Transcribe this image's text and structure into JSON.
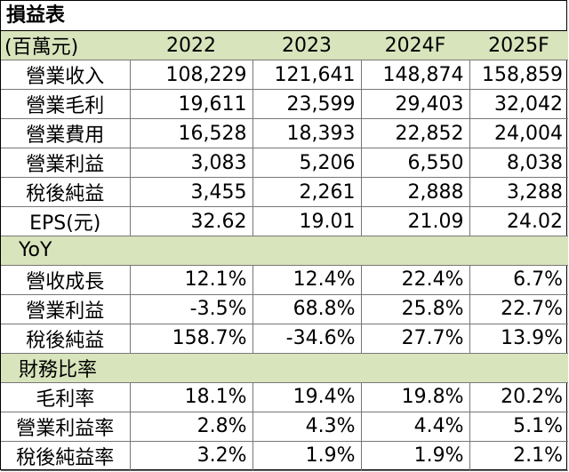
{
  "title": "損益表",
  "header": {
    "unit_label": "(百萬元)",
    "years": [
      "2022",
      "2023",
      "2024F",
      "2025F"
    ]
  },
  "income_rows": [
    {
      "label": "營業收入",
      "values": [
        "108,229",
        "121,641",
        "148,874",
        "158,859"
      ]
    },
    {
      "label": "營業毛利",
      "values": [
        "19,611",
        "23,599",
        "29,403",
        "32,042"
      ]
    },
    {
      "label": "營業費用",
      "values": [
        "16,528",
        "18,393",
        "22,852",
        "24,004"
      ]
    },
    {
      "label": "營業利益",
      "values": [
        "3,083",
        "5,206",
        "6,550",
        "8,038"
      ]
    },
    {
      "label": "稅後純益",
      "values": [
        "3,455",
        "2,261",
        "2,888",
        "3,288"
      ]
    },
    {
      "label": "EPS(元)",
      "values": [
        "32.62",
        "19.01",
        "21.09",
        "24.02"
      ]
    }
  ],
  "yoy_section": {
    "label": "YoY",
    "rows": [
      {
        "label": "營收成長",
        "values": [
          "12.1%",
          "12.4%",
          "22.4%",
          "6.7%"
        ]
      },
      {
        "label": "營業利益",
        "values": [
          "-3.5%",
          "68.8%",
          "25.8%",
          "22.7%"
        ]
      },
      {
        "label": "稅後純益",
        "values": [
          "158.7%",
          "-34.6%",
          "27.7%",
          "13.9%"
        ]
      }
    ]
  },
  "ratio_section": {
    "label": "財務比率",
    "rows": [
      {
        "label": "毛利率",
        "values": [
          "18.1%",
          "19.4%",
          "19.8%",
          "20.2%"
        ]
      },
      {
        "label": "營業利益率",
        "values": [
          "2.8%",
          "4.3%",
          "4.4%",
          "5.1%"
        ]
      },
      {
        "label": "稅後純益率",
        "values": [
          "3.2%",
          "1.9%",
          "1.9%",
          "2.1%"
        ]
      }
    ]
  },
  "colors": {
    "header_fill": "#d8e4bc",
    "border": "#777777"
  }
}
